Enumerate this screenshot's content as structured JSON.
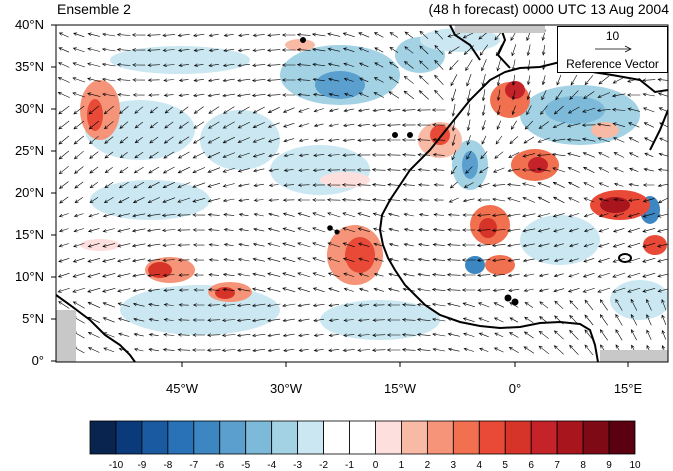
{
  "title_left": "Ensemble 2",
  "title_right": "(48 h forecast) 0000 UTC 13 Aug 2004",
  "lat_labels": [
    "40°N",
    "35°N",
    "30°N",
    "25°N",
    "20°N",
    "15°N",
    "10°N",
    "5°N",
    "0°"
  ],
  "lon_labels": [
    "45°W",
    "30°W",
    "15°W",
    "0°",
    "15°E"
  ],
  "reference_vector": {
    "magnitude": "10",
    "label": "Reference Vector"
  },
  "colorbar": {
    "labels": [
      "-10",
      "-9",
      "-8",
      "-7",
      "-6",
      "-5",
      "-4",
      "-3",
      "-2",
      "-1",
      "0",
      "1",
      "2",
      "3",
      "4",
      "5",
      "6",
      "7",
      "8",
      "9",
      "10"
    ],
    "colors": [
      "#08244f",
      "#0b3a7a",
      "#1a5aa0",
      "#2a72b8",
      "#3c86c2",
      "#5a9fce",
      "#7dbad9",
      "#a2d2e4",
      "#cbe8f2",
      "#ffffff",
      "#ffffff",
      "#fde0dd",
      "#f8b9a5",
      "#f59478",
      "#f07050",
      "#e84a37",
      "#d63428",
      "#c4232a",
      "#a8151d",
      "#7e0a16",
      "#5a0010"
    ]
  }
}
